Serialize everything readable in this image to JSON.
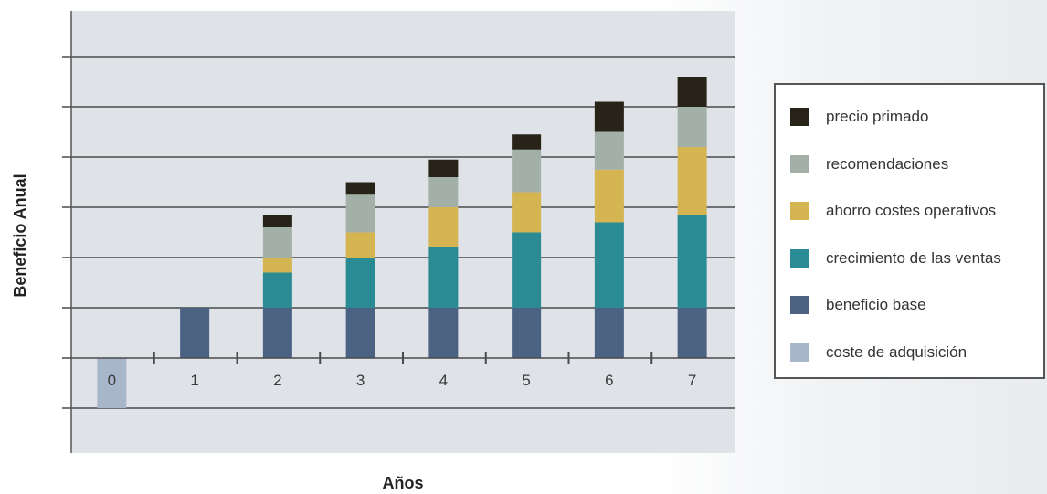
{
  "chart_data": {
    "type": "bar",
    "stacked": true,
    "xlabel": "Años",
    "ylabel": "Beneficio Anual",
    "categories": [
      "0",
      "1",
      "2",
      "3",
      "4",
      "5",
      "6",
      "7"
    ],
    "ylim": [
      -2,
      7
    ],
    "grid": true,
    "legend_position": "right",
    "series": [
      {
        "name": "coste de adquisición",
        "color": "#a8b6cb",
        "values": [
          -1,
          0,
          0,
          0,
          0,
          0,
          0,
          0
        ]
      },
      {
        "name": "beneficio base",
        "color": "#4b6283",
        "values": [
          0,
          1,
          1,
          1,
          1,
          1,
          1,
          1
        ]
      },
      {
        "name": "crecimiento de las ventas",
        "color": "#2b8b95",
        "values": [
          0,
          0,
          0.7,
          1,
          1.2,
          1.5,
          1.7,
          1.85
        ]
      },
      {
        "name": "ahorro costes operativos",
        "color": "#d4b552",
        "values": [
          0,
          0,
          0.3,
          0.5,
          0.8,
          0.8,
          1.05,
          1.35
        ]
      },
      {
        "name": "recomendaciones",
        "color": "#a2b0a8",
        "values": [
          0,
          0,
          0.6,
          0.75,
          0.6,
          0.85,
          0.75,
          0.8
        ]
      },
      {
        "name": "precio primado",
        "color": "#282318",
        "values": [
          0,
          0,
          0.25,
          0.25,
          0.35,
          0.3,
          0.6,
          0.6
        ]
      }
    ]
  },
  "legend_order": [
    5,
    4,
    3,
    2,
    1,
    0
  ]
}
